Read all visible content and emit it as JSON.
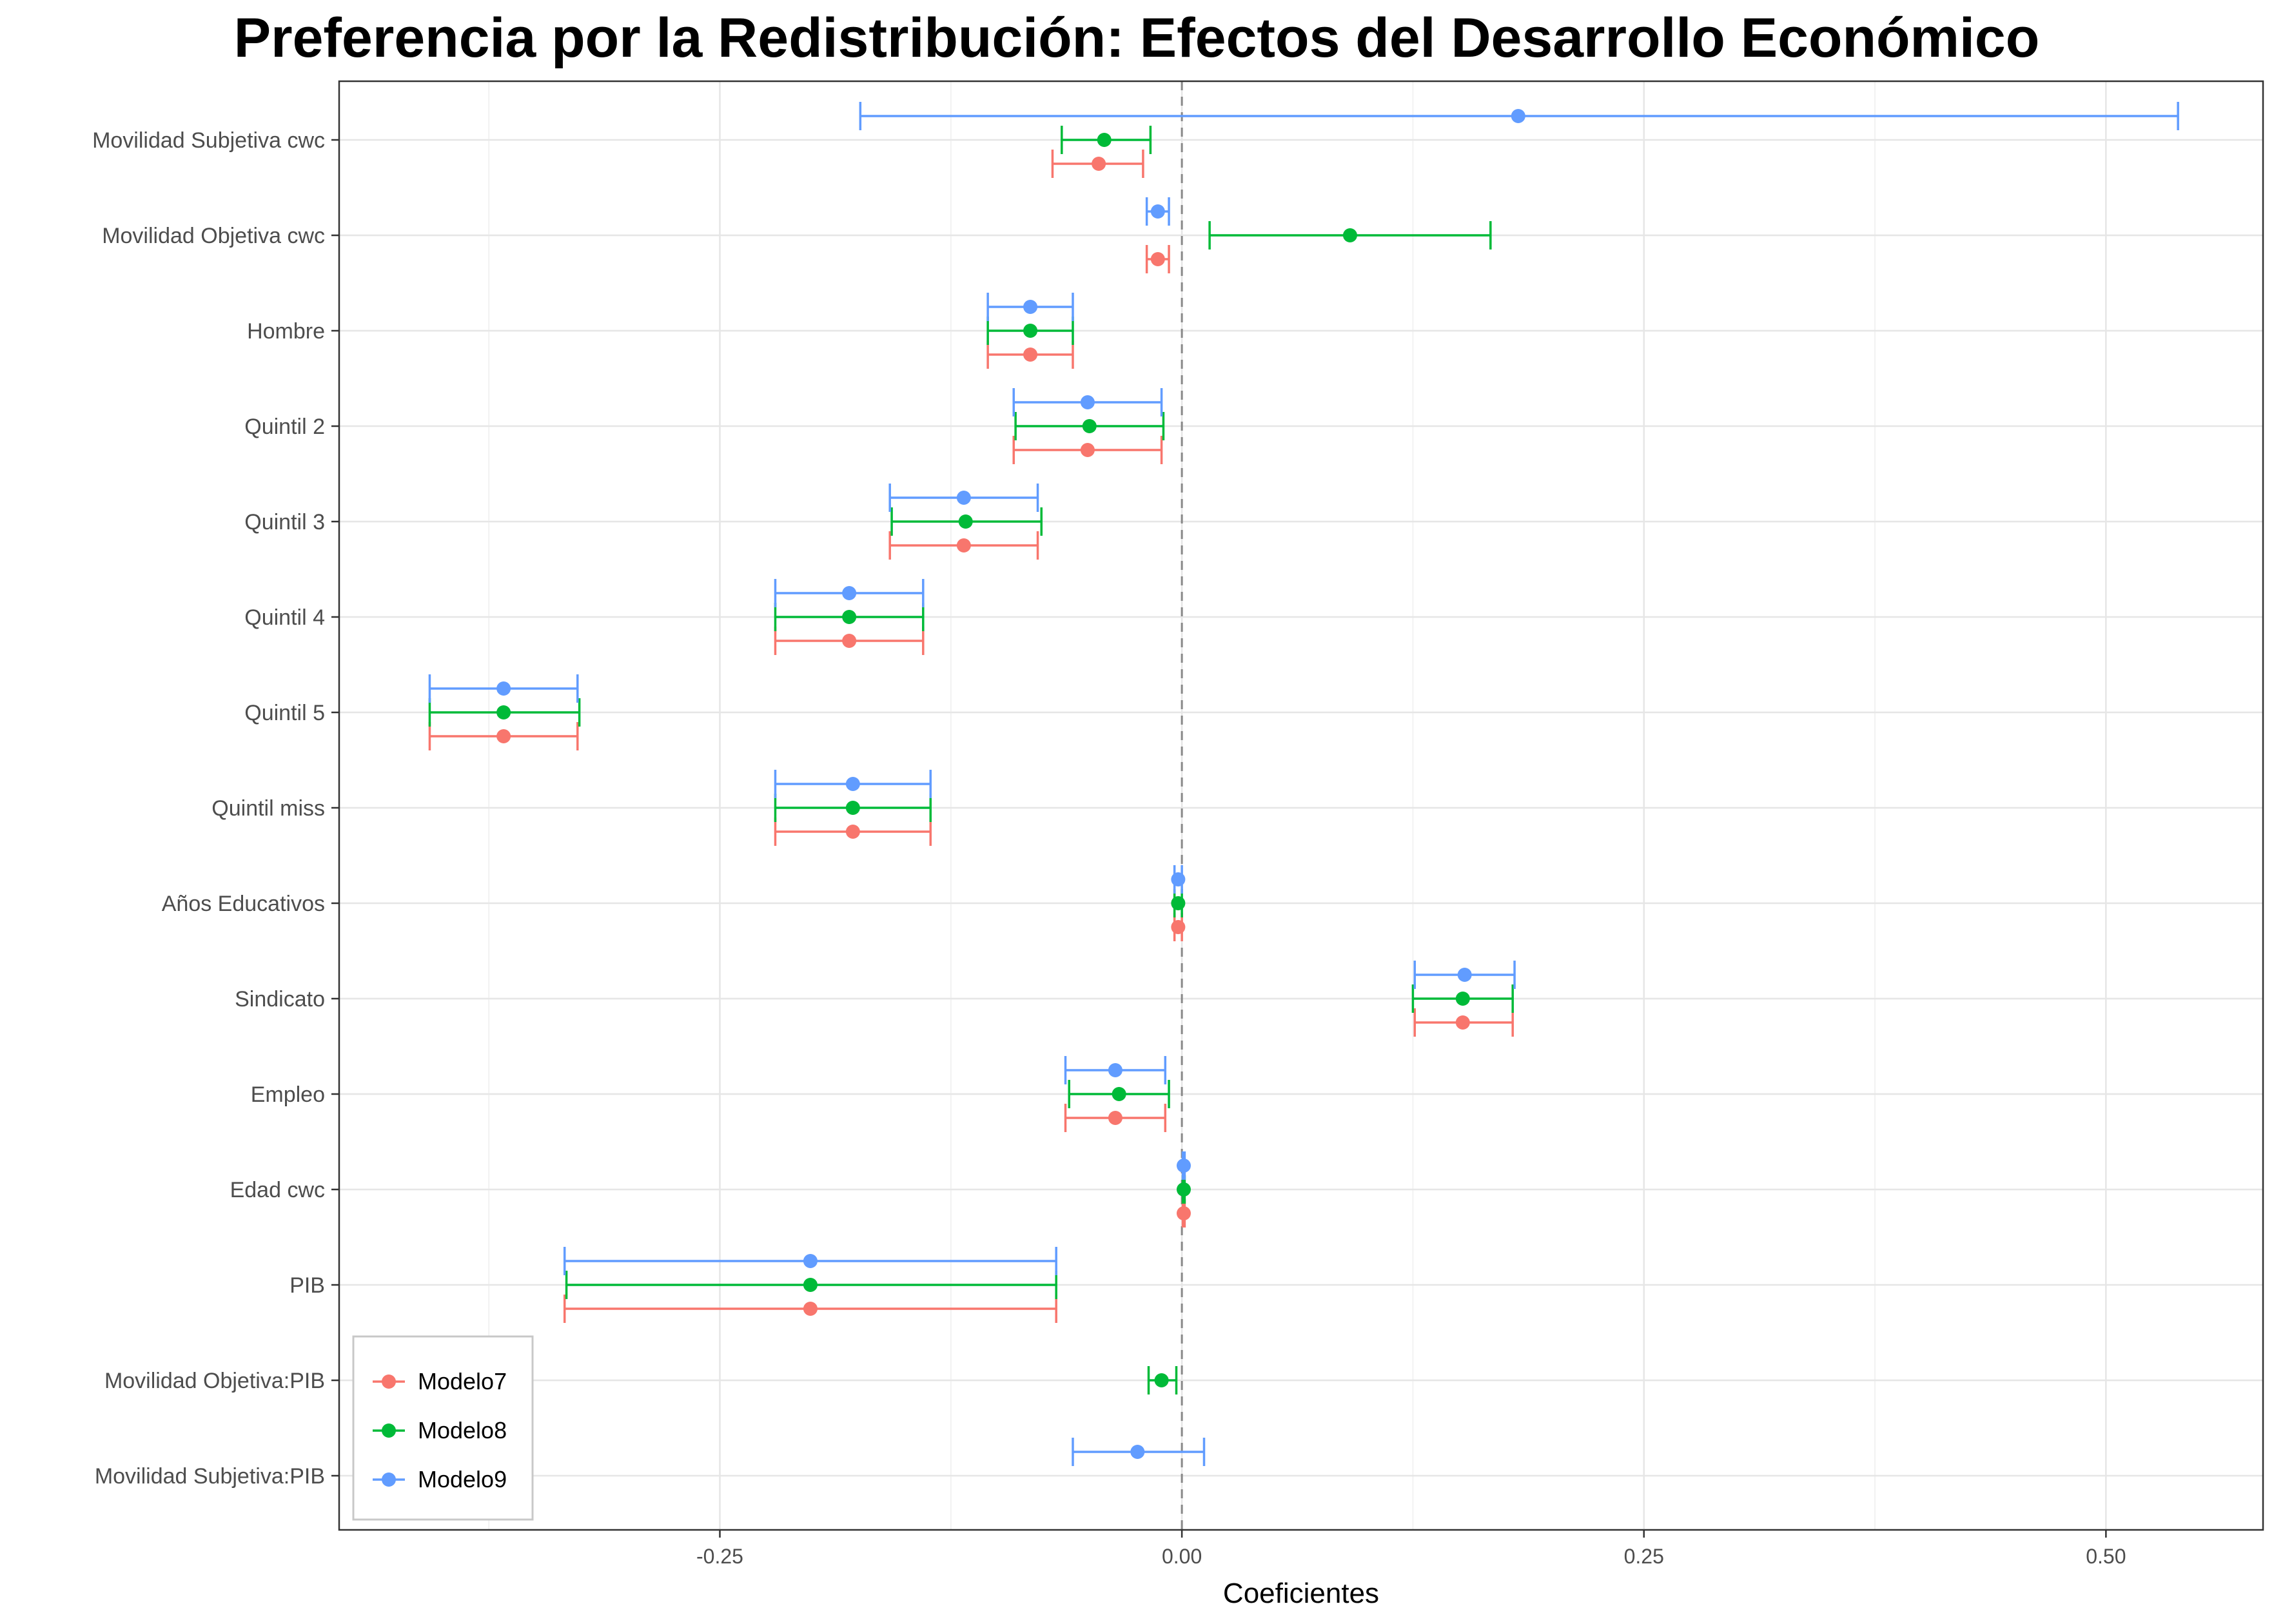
{
  "chart_data": {
    "type": "coefficient-plot",
    "title": "Preferencia por la Redistribución: Efectos del Desarrollo Económico",
    "xlabel": "Coeficientes",
    "ylabel": "",
    "xlim": [
      -0.456,
      0.585
    ],
    "xticks": [
      -0.25,
      0.0,
      0.25,
      0.5
    ],
    "xtick_labels": [
      "-0.25",
      "0.00",
      "0.25",
      "0.50"
    ],
    "grid": true,
    "reference_line": 0,
    "legend_position": "bottom-left",
    "categories": [
      "Movilidad Subjetiva cwc",
      "Movilidad Objetiva cwc",
      "Hombre",
      "Quintil 2",
      "Quintil 3",
      "Quintil 4",
      "Quintil 5",
      "Quintil miss",
      "Años Educativos",
      "Sindicato",
      "Empleo",
      "Edad cwc",
      "PIB",
      "Movilidad Objetiva:PIB",
      "Movilidad Subjetiva:PIB"
    ],
    "series": [
      {
        "name": "Modelo7",
        "color": "#F8766D",
        "points": [
          {
            "estimate": -0.045,
            "low": -0.07,
            "high": -0.021
          },
          {
            "estimate": -0.013,
            "low": -0.019,
            "high": -0.007
          },
          {
            "estimate": -0.082,
            "low": -0.105,
            "high": -0.059
          },
          {
            "estimate": -0.051,
            "low": -0.091,
            "high": -0.011
          },
          {
            "estimate": -0.118,
            "low": -0.158,
            "high": -0.078
          },
          {
            "estimate": -0.18,
            "low": -0.22,
            "high": -0.14
          },
          {
            "estimate": -0.367,
            "low": -0.407,
            "high": -0.327
          },
          {
            "estimate": -0.178,
            "low": -0.22,
            "high": -0.136
          },
          {
            "estimate": -0.002,
            "low": -0.004,
            "high": 0.0
          },
          {
            "estimate": 0.152,
            "low": 0.126,
            "high": 0.179
          },
          {
            "estimate": -0.036,
            "low": -0.063,
            "high": -0.009
          },
          {
            "estimate": 0.001,
            "low": 0.0005,
            "high": 0.0015
          },
          {
            "estimate": -0.201,
            "low": -0.334,
            "high": -0.068
          }
        ]
      },
      {
        "name": "Modelo8",
        "color": "#00BA38",
        "points": [
          {
            "estimate": -0.042,
            "low": -0.065,
            "high": -0.017
          },
          {
            "estimate": 0.091,
            "low": 0.015,
            "high": 0.167
          },
          {
            "estimate": -0.082,
            "low": -0.105,
            "high": -0.059
          },
          {
            "estimate": -0.05,
            "low": -0.09,
            "high": -0.01
          },
          {
            "estimate": -0.117,
            "low": -0.157,
            "high": -0.076
          },
          {
            "estimate": -0.18,
            "low": -0.22,
            "high": -0.14
          },
          {
            "estimate": -0.367,
            "low": -0.407,
            "high": -0.326
          },
          {
            "estimate": -0.178,
            "low": -0.22,
            "high": -0.136
          },
          {
            "estimate": -0.002,
            "low": -0.004,
            "high": 0.0
          },
          {
            "estimate": 0.152,
            "low": 0.125,
            "high": 0.179
          },
          {
            "estimate": -0.034,
            "low": -0.061,
            "high": -0.007
          },
          {
            "estimate": 0.001,
            "low": 0.0005,
            "high": 0.0015
          },
          {
            "estimate": -0.201,
            "low": -0.333,
            "high": -0.068
          },
          {
            "estimate": -0.011,
            "low": -0.018,
            "high": -0.003
          }
        ]
      },
      {
        "name": "Modelo9",
        "color": "#619CFF",
        "points": [
          {
            "estimate": 0.182,
            "low": -0.174,
            "high": 0.539
          },
          {
            "estimate": -0.013,
            "low": -0.019,
            "high": -0.007
          },
          {
            "estimate": -0.082,
            "low": -0.105,
            "high": -0.059
          },
          {
            "estimate": -0.051,
            "low": -0.091,
            "high": -0.011
          },
          {
            "estimate": -0.118,
            "low": -0.158,
            "high": -0.078
          },
          {
            "estimate": -0.18,
            "low": -0.22,
            "high": -0.14
          },
          {
            "estimate": -0.367,
            "low": -0.407,
            "high": -0.327
          },
          {
            "estimate": -0.178,
            "low": -0.22,
            "high": -0.136
          },
          {
            "estimate": -0.002,
            "low": -0.004,
            "high": 0.0
          },
          {
            "estimate": 0.153,
            "low": 0.126,
            "high": 0.18
          },
          {
            "estimate": -0.036,
            "low": -0.063,
            "high": -0.009
          },
          {
            "estimate": 0.001,
            "low": 0.0005,
            "high": 0.0015
          },
          {
            "estimate": -0.201,
            "low": -0.334,
            "high": -0.068
          },
          null,
          {
            "estimate": -0.024,
            "low": -0.059,
            "high": 0.012
          }
        ]
      }
    ]
  }
}
